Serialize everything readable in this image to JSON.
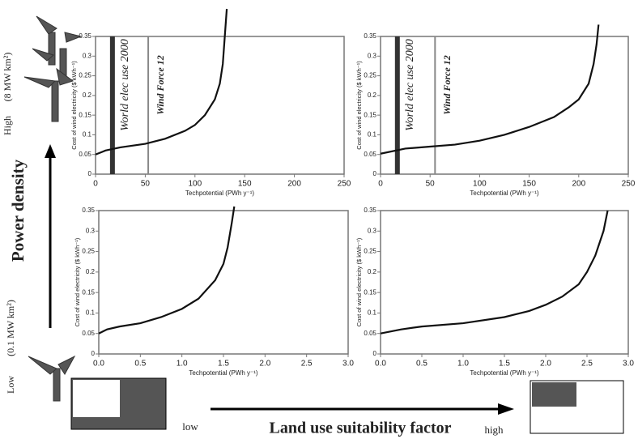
{
  "figure": {
    "y_axis_label": "Power density",
    "x_axis_label": "Land use suitability factor",
    "x_low": "low",
    "x_high": "high",
    "y_high": "High",
    "y_high_density": "(8 MW km²)",
    "y_low": "Low",
    "y_low_density": "(0.1 MW km²)"
  },
  "chart_data": [
    {
      "type": "line",
      "x_label": "Techpotential (PWh y⁻¹)",
      "y_label": "Cost of wind electricity ($ kWh⁻¹)",
      "x": [
        0,
        10,
        25,
        50,
        70,
        90,
        100,
        110,
        120,
        125,
        128,
        130,
        132
      ],
      "series": [
        {
          "color": "#111",
          "values": [
            0.05,
            0.06,
            0.068,
            0.077,
            0.09,
            0.11,
            0.125,
            0.15,
            0.19,
            0.23,
            0.28,
            0.35,
            0.42
          ]
        }
      ],
      "xlim": [
        0,
        250
      ],
      "xticks": [
        0,
        50,
        100,
        150,
        200,
        250
      ],
      "ylim": [
        0,
        0.35
      ],
      "yticks": [
        0,
        0.05,
        0.1,
        0.15,
        0.2,
        0.25,
        0.3,
        0.35
      ],
      "annotations": [
        {
          "x": 17,
          "label": "World elec use 2000"
        },
        {
          "x": 53,
          "label": "Wind Force 12"
        }
      ]
    },
    {
      "type": "line",
      "x_label": "Techpotential (PWh y⁻¹)",
      "y_label": "Cost of wind electricity ($ kWh⁻¹)",
      "x": [
        0,
        25,
        50,
        75,
        100,
        125,
        150,
        175,
        190,
        200,
        210,
        215,
        218,
        220
      ],
      "series": [
        {
          "color": "#111",
          "values": [
            0.052,
            0.065,
            0.07,
            0.075,
            0.085,
            0.1,
            0.12,
            0.145,
            0.17,
            0.19,
            0.23,
            0.28,
            0.33,
            0.38
          ]
        }
      ],
      "xlim": [
        0,
        250
      ],
      "xticks": [
        0,
        50,
        100,
        150,
        200,
        250
      ],
      "ylim": [
        0,
        0.35
      ],
      "yticks": [
        0,
        0.05,
        0.1,
        0.15,
        0.2,
        0.25,
        0.3,
        0.35
      ],
      "annotations": [
        {
          "x": 17,
          "label": "World elec use 2000"
        },
        {
          "x": 55,
          "label": "Wind Force 12"
        }
      ]
    },
    {
      "type": "line",
      "x_label": "Techpotential (PWh y⁻¹)",
      "y_label": "Cost of wind electricity ($ kWh⁻¹)",
      "x": [
        0,
        0.1,
        0.25,
        0.5,
        0.75,
        1.0,
        1.2,
        1.4,
        1.5,
        1.55,
        1.6,
        1.63
      ],
      "series": [
        {
          "color": "#111",
          "values": [
            0.05,
            0.06,
            0.067,
            0.075,
            0.09,
            0.11,
            0.135,
            0.18,
            0.22,
            0.26,
            0.32,
            0.36
          ]
        }
      ],
      "xlim": [
        0,
        3
      ],
      "xticks": [
        {
          "value": 0,
          "label": "0.0"
        },
        0.5,
        {
          "value": 1,
          "label": "1.0"
        },
        1.5,
        {
          "value": 2,
          "label": "2.0"
        },
        2.5,
        {
          "value": 3,
          "label": "3.0"
        }
      ],
      "ylim": [
        0,
        0.35
      ],
      "yticks": [
        0,
        0.05,
        0.1,
        0.15,
        0.2,
        0.25,
        0.3,
        0.35
      ]
    },
    {
      "type": "line",
      "x_label": "Techpotential (PWh y⁻¹)",
      "y_label": "Cost of wind electricity ($ kWh⁻¹)",
      "x": [
        0,
        0.25,
        0.5,
        1,
        1.5,
        1.8,
        2.0,
        2.2,
        2.4,
        2.5,
        2.6,
        2.7,
        2.75
      ],
      "series": [
        {
          "color": "#111",
          "values": [
            0.05,
            0.06,
            0.067,
            0.075,
            0.09,
            0.105,
            0.12,
            0.14,
            0.17,
            0.2,
            0.24,
            0.3,
            0.35
          ]
        }
      ],
      "xlim": [
        0,
        3
      ],
      "xticks": [
        {
          "value": 0,
          "label": "0.0"
        },
        0.5,
        {
          "value": 1,
          "label": "1.0"
        },
        1.5,
        {
          "value": 2,
          "label": "2.0"
        },
        2.5,
        {
          "value": 3,
          "label": "3.0"
        }
      ],
      "ylim": [
        0,
        0.35
      ],
      "yticks": [
        0,
        0.05,
        0.1,
        0.15,
        0.2,
        0.25,
        0.3,
        0.35
      ]
    }
  ]
}
